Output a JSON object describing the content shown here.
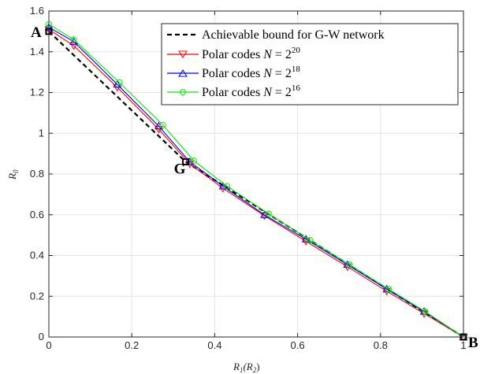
{
  "chart_data": {
    "type": "line",
    "title": "",
    "xlabel": "R1(R2)",
    "ylabel": "R0",
    "xlim": [
      0,
      1
    ],
    "ylim": [
      0,
      1.6
    ],
    "x_ticks": [
      "0",
      "0.2",
      "0.4",
      "0.6",
      "0.8",
      "1"
    ],
    "y_ticks": [
      "0",
      "0.2",
      "0.4",
      "0.6",
      "0.8",
      "1",
      "1.2",
      "1.4",
      "1.6"
    ],
    "grid": true,
    "legend_position": "top-right",
    "series": [
      {
        "name": "Achievable bound for G-W network",
        "color": "#000000",
        "style": "dashed",
        "marker": "none",
        "x": [
          0,
          0.33,
          1
        ],
        "y": [
          1.5,
          0.86,
          0
        ]
      },
      {
        "name": "Polar codes N = 2^20",
        "color": "#ff0000",
        "style": "solid",
        "marker": "triangle-down",
        "x": [
          0,
          0.06,
          0.165,
          0.265,
          0.34,
          0.42,
          0.52,
          0.62,
          0.72,
          0.815,
          0.905,
          1
        ],
        "y": [
          1.51,
          1.43,
          1.225,
          1.02,
          0.85,
          0.73,
          0.595,
          0.47,
          0.345,
          0.225,
          0.115,
          0
        ]
      },
      {
        "name": "Polar codes N = 2^18",
        "color": "#0000ff",
        "style": "solid",
        "marker": "triangle-up",
        "x": [
          0,
          0.06,
          0.165,
          0.265,
          0.34,
          0.42,
          0.52,
          0.62,
          0.72,
          0.815,
          0.905,
          1
        ],
        "y": [
          1.52,
          1.45,
          1.24,
          1.035,
          0.86,
          0.74,
          0.6,
          0.48,
          0.355,
          0.235,
          0.125,
          0
        ]
      },
      {
        "name": "Polar codes N = 2^16",
        "color": "#00ee00",
        "style": "solid",
        "marker": "circle",
        "x": [
          0,
          0.06,
          0.17,
          0.275,
          0.35,
          0.43,
          0.53,
          0.63,
          0.725,
          0.82,
          0.908,
          1
        ],
        "y": [
          1.535,
          1.46,
          1.25,
          1.04,
          0.865,
          0.74,
          0.605,
          0.475,
          0.355,
          0.235,
          0.125,
          0
        ]
      }
    ],
    "point_labels": [
      {
        "text": "A",
        "x": 0,
        "y": 1.5
      },
      {
        "text": "G",
        "x": 0.33,
        "y": 0.86
      },
      {
        "text": "B",
        "x": 1,
        "y": 0
      }
    ]
  },
  "legend": {
    "bound": "Achievable bound for G-W network",
    "polar_prefix": "Polar codes",
    "n20_exp": "20",
    "n18_exp": "18",
    "n16_exp": "16"
  },
  "labels": {
    "xlabel_main": "R",
    "xlabel_sub1": "1",
    "xlabel_paren": "(R",
    "xlabel_sub2": "2",
    "xlabel_close": ")",
    "ylabel_main": "R",
    "ylabel_sub": "0"
  }
}
